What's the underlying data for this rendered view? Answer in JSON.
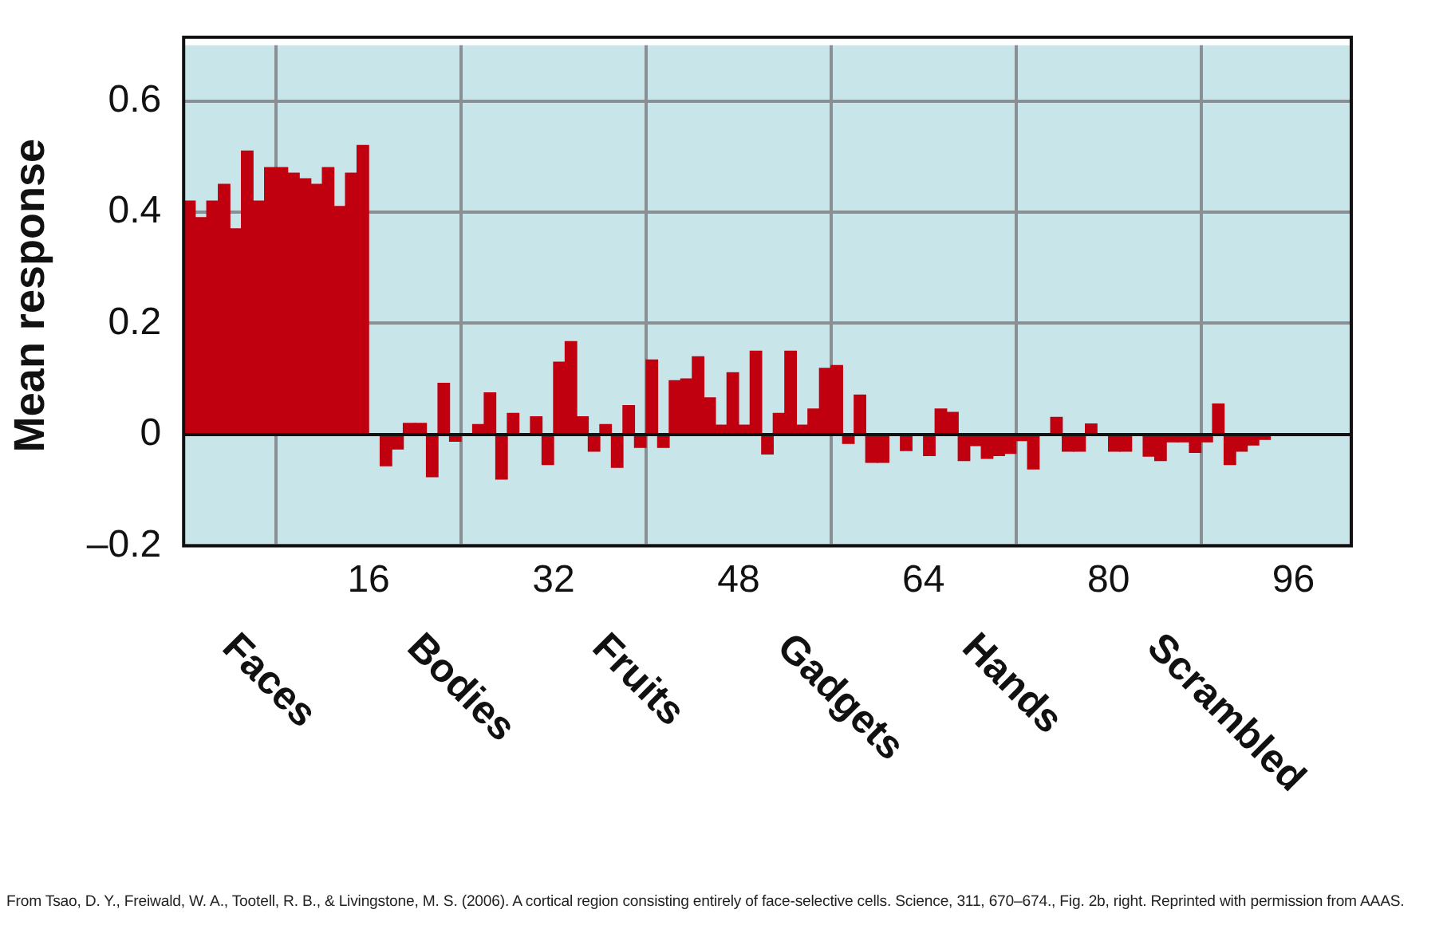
{
  "chart_data": {
    "type": "bar",
    "ylabel": "Mean response",
    "x": [
      0.5,
      1.5,
      2.5,
      3.5,
      4.5,
      5.5,
      6.5,
      7.5,
      8.5,
      9.5,
      10.5,
      11.5,
      12.5,
      13.5,
      14.5,
      15.5,
      16.5,
      17.5,
      18.5,
      19.5,
      20.5,
      21.5,
      22.5,
      23.5,
      24.5,
      25.5,
      26.5,
      27.5,
      28.5,
      29.5,
      30.5,
      31.5,
      32.5,
      33.5,
      34.5,
      35.5,
      36.5,
      37.5,
      38.5,
      39.5,
      40.5,
      41.5,
      42.5,
      43.5,
      44.5,
      45.5,
      46.5,
      47.5,
      48.5,
      49.5,
      50.5,
      51.5,
      52.5,
      53.5,
      54.5,
      55.5,
      56.5,
      57.5,
      58.5,
      59.5,
      60.5,
      61.5,
      62.5,
      63.5,
      64.5,
      65.5,
      66.5,
      67.5,
      68.5,
      69.5,
      70.5,
      71.5,
      72.5,
      73.5,
      74.5,
      75.5,
      76.5,
      77.5,
      78.5,
      79.5,
      80.5,
      81.5,
      82.5,
      83.5,
      84.5,
      85.5,
      86.5,
      87.5,
      88.5,
      89.5,
      90.5,
      91.5,
      92.5,
      93.5,
      94.5,
      95.5
    ],
    "values": [
      0.42,
      0.39,
      0.42,
      0.45,
      0.37,
      0.51,
      0.42,
      0.48,
      0.48,
      0.47,
      0.46,
      0.45,
      0.48,
      0.41,
      0.47,
      0.52,
      0,
      -0.056,
      -0.026,
      0.02,
      0.02,
      -0.076,
      0.092,
      -0.012,
      0,
      0.018,
      0.075,
      -0.08,
      0.038,
      0,
      0.032,
      -0.054,
      0.13,
      0.167,
      0.032,
      -0.03,
      0.018,
      -0.059,
      0.052,
      -0.023,
      0.134,
      -0.023,
      0.097,
      0.1,
      0.14,
      0.066,
      0.017,
      0.111,
      0.017,
      0.15,
      -0.035,
      0.038,
      0.15,
      0.017,
      0.046,
      0.119,
      0.124,
      -0.016,
      0.071,
      -0.05,
      -0.05,
      0,
      -0.029,
      0,
      -0.038,
      0.046,
      0.04,
      -0.047,
      -0.02,
      -0.043,
      -0.038,
      -0.034,
      -0.011,
      -0.062,
      0,
      0.031,
      -0.03,
      -0.03,
      0.019,
      0,
      -0.03,
      -0.03,
      0,
      -0.039,
      -0.047,
      -0.013,
      -0.013,
      -0.032,
      -0.013,
      0.055,
      -0.054,
      -0.03,
      -0.019,
      -0.009,
      0,
      0
    ],
    "color": "#c0000f",
    "xlim": [
      0,
      101
    ],
    "xticks": [
      16,
      32,
      48,
      64,
      80,
      96
    ],
    "ylim": [
      -0.2,
      0.7
    ],
    "yticks": [
      {
        "value": -0.2,
        "label": "–0.2"
      },
      0,
      0.2,
      0.4,
      0.6
    ],
    "grid": true,
    "legend": false,
    "annotations": [
      "Faces",
      "Bodies",
      "Fruits",
      "Gadgets",
      "Hands",
      "Scrambled",
      "From Tsao, D. Y., Freiwald, W. A., Tootell, R. B., & Livingstone, M. S. (2006). A cortical region consisting entirely of face-selective cells. Science, 311, 670–674., Fig. 2b, right. Reprinted with permission from AAAS."
    ]
  }
}
